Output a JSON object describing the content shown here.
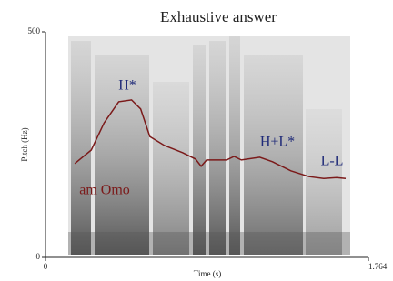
{
  "chart_data": {
    "type": "line",
    "title": "Exhaustive answer",
    "x_label": "Time (s)",
    "y_label": "Pitch (Hz)",
    "x": [
      0.16,
      0.25,
      0.32,
      0.4,
      0.47,
      0.52,
      0.57,
      0.65,
      0.75,
      0.82,
      0.85,
      0.88,
      0.99,
      1.03,
      1.07,
      1.17,
      1.24,
      1.34,
      1.44,
      1.52,
      1.59,
      1.64
    ],
    "series": [
      {
        "color": "#7b1a1a",
        "values": [
          208,
          238,
          298,
          345,
          349,
          329,
          268,
          248,
          232,
          218,
          202,
          216,
          216,
          224,
          216,
          222,
          212,
          192,
          179,
          175,
          177,
          175
        ]
      }
    ],
    "xlim": [
      0,
      1.764
    ],
    "xticks": [
      0,
      1.764
    ],
    "ylim": [
      0,
      500
    ],
    "yticks": [
      0,
      500
    ],
    "annotations": [
      "H*",
      "H+L*",
      "L-L",
      "am Omo"
    ],
    "annotation_colors": [
      "#1f2a78",
      "#1f2a78",
      "#1f2a78",
      "#7b1a1a"
    ]
  }
}
